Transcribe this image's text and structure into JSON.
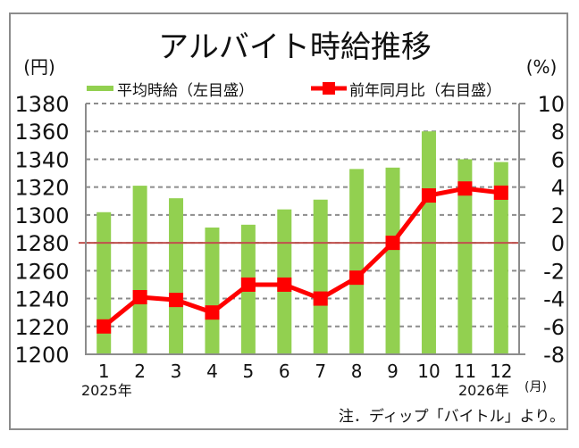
{
  "chart_data": {
    "type": "bar+line",
    "title": "アルバイト時給推移",
    "categories": [
      "1",
      "2",
      "3",
      "4",
      "5",
      "6",
      "7",
      "8",
      "9",
      "10",
      "11",
      "12"
    ],
    "year_labels": [
      {
        "index": 0,
        "label": "2025年"
      },
      {
        "index": 11,
        "label": "2026年"
      }
    ],
    "xlabel": "(月)",
    "left_axis": {
      "label": "(円)",
      "min": 1200,
      "max": 1380,
      "step": 20,
      "ticks": [
        1380,
        1360,
        1340,
        1320,
        1300,
        1280,
        1260,
        1240,
        1220,
        1200
      ]
    },
    "right_axis": {
      "label": "(%)",
      "min": -8,
      "max": 10,
      "step": 2,
      "ticks": [
        10,
        8,
        6,
        4,
        2,
        0,
        -2,
        -4,
        -6,
        -8
      ]
    },
    "series": [
      {
        "name": "平均時給（左目盛）",
        "type": "bar",
        "axis": "left",
        "color": "#92d050",
        "values": [
          1302,
          1321,
          1312,
          1291,
          1293,
          1304,
          1311,
          1333,
          1334,
          1360,
          1340,
          1338
        ]
      },
      {
        "name": "前年同月比（右目盛）",
        "type": "line",
        "axis": "right",
        "color": "#ff0000",
        "values": [
          -6.0,
          -3.9,
          -4.1,
          -5.0,
          -3.0,
          -3.0,
          -4.0,
          -2.5,
          0.0,
          3.4,
          3.9,
          3.6
        ]
      }
    ],
    "reference_line": {
      "value": 0,
      "axis": "right",
      "color": "#c0504d"
    },
    "grid": "horizontal dashed",
    "legend_position": "top",
    "note": "注．ディップ「バイトル」より。"
  },
  "labels": {
    "title": "アルバイト時給推移",
    "left_unit": "(円)",
    "right_unit": "(%)",
    "legend_bar": "平均時給（左目盛）",
    "legend_line": "前年同月比（右目盛）",
    "month_unit": "(月)",
    "year_start": "2025年",
    "year_end": "2026年",
    "note": "注．ディップ「バイトル」より。"
  }
}
